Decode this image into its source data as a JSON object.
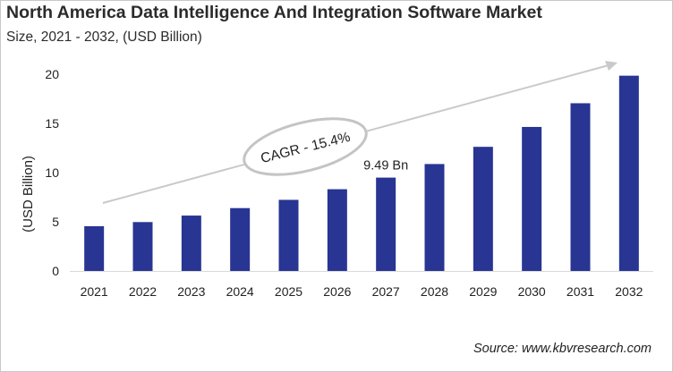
{
  "chart_data": {
    "type": "bar",
    "title": "North America Data Intelligence And Integration Software Market",
    "subtitle": "Size, 2021 - 2032, (USD Billion)",
    "xlabel": "",
    "ylabel": "(USD Billion)",
    "categories": [
      "2021",
      "2022",
      "2023",
      "2024",
      "2025",
      "2026",
      "2027",
      "2028",
      "2029",
      "2030",
      "2031",
      "2032"
    ],
    "values": [
      4.55,
      4.97,
      5.63,
      6.39,
      7.23,
      8.31,
      9.49,
      10.87,
      12.62,
      14.64,
      17.05,
      19.85
    ],
    "ylim": [
      0,
      20
    ],
    "yticks": [
      0,
      5,
      10,
      15,
      20
    ],
    "grid": false,
    "bar_color": "#283593",
    "annotations": {
      "data_label": {
        "category": "2027",
        "text": "9.49 Bn"
      },
      "cagr": "CAGR - 15.4%"
    },
    "source": "Source: www.kbvresearch.com"
  }
}
